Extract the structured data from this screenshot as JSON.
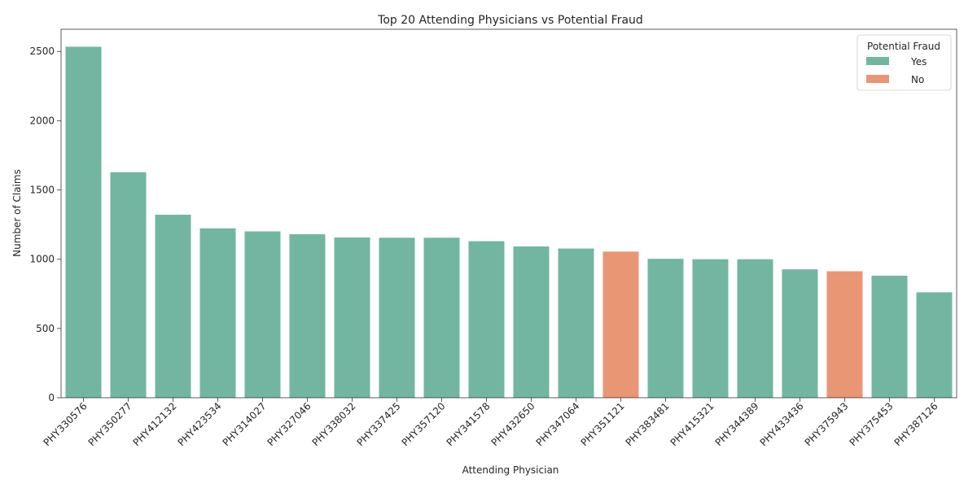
{
  "chart_data": {
    "type": "bar",
    "title": "Top 20 Attending Physicians vs Potential Fraud",
    "xlabel": "Attending Physician",
    "ylabel": "Number of Claims",
    "ylim": [
      0,
      2660
    ],
    "yticks": [
      0,
      500,
      1000,
      1500,
      2000,
      2500
    ],
    "grid": false,
    "legend": {
      "title": "Potential Fraud",
      "placement": "top-right",
      "entries": [
        {
          "label": "Yes",
          "color": "#72b6a1"
        },
        {
          "label": "No",
          "color": "#e99675"
        }
      ]
    },
    "categories": [
      "PHY330576",
      "PHY350277",
      "PHY412132",
      "PHY423534",
      "PHY314027",
      "PHY327046",
      "PHY338032",
      "PHY337425",
      "PHY357120",
      "PHY341578",
      "PHY432650",
      "PHY347064",
      "PHY351121",
      "PHY383481",
      "PHY415321",
      "PHY344389",
      "PHY433436",
      "PHY375943",
      "PHY375453",
      "PHY387126"
    ],
    "values": [
      2534,
      1628,
      1321,
      1223,
      1201,
      1180,
      1157,
      1155,
      1155,
      1130,
      1092,
      1077,
      1055,
      1003,
      1000,
      1000,
      927,
      913,
      881,
      761
    ],
    "fraud": [
      "Yes",
      "Yes",
      "Yes",
      "Yes",
      "Yes",
      "Yes",
      "Yes",
      "Yes",
      "Yes",
      "Yes",
      "Yes",
      "Yes",
      "No",
      "Yes",
      "Yes",
      "Yes",
      "Yes",
      "No",
      "Yes",
      "Yes"
    ]
  }
}
